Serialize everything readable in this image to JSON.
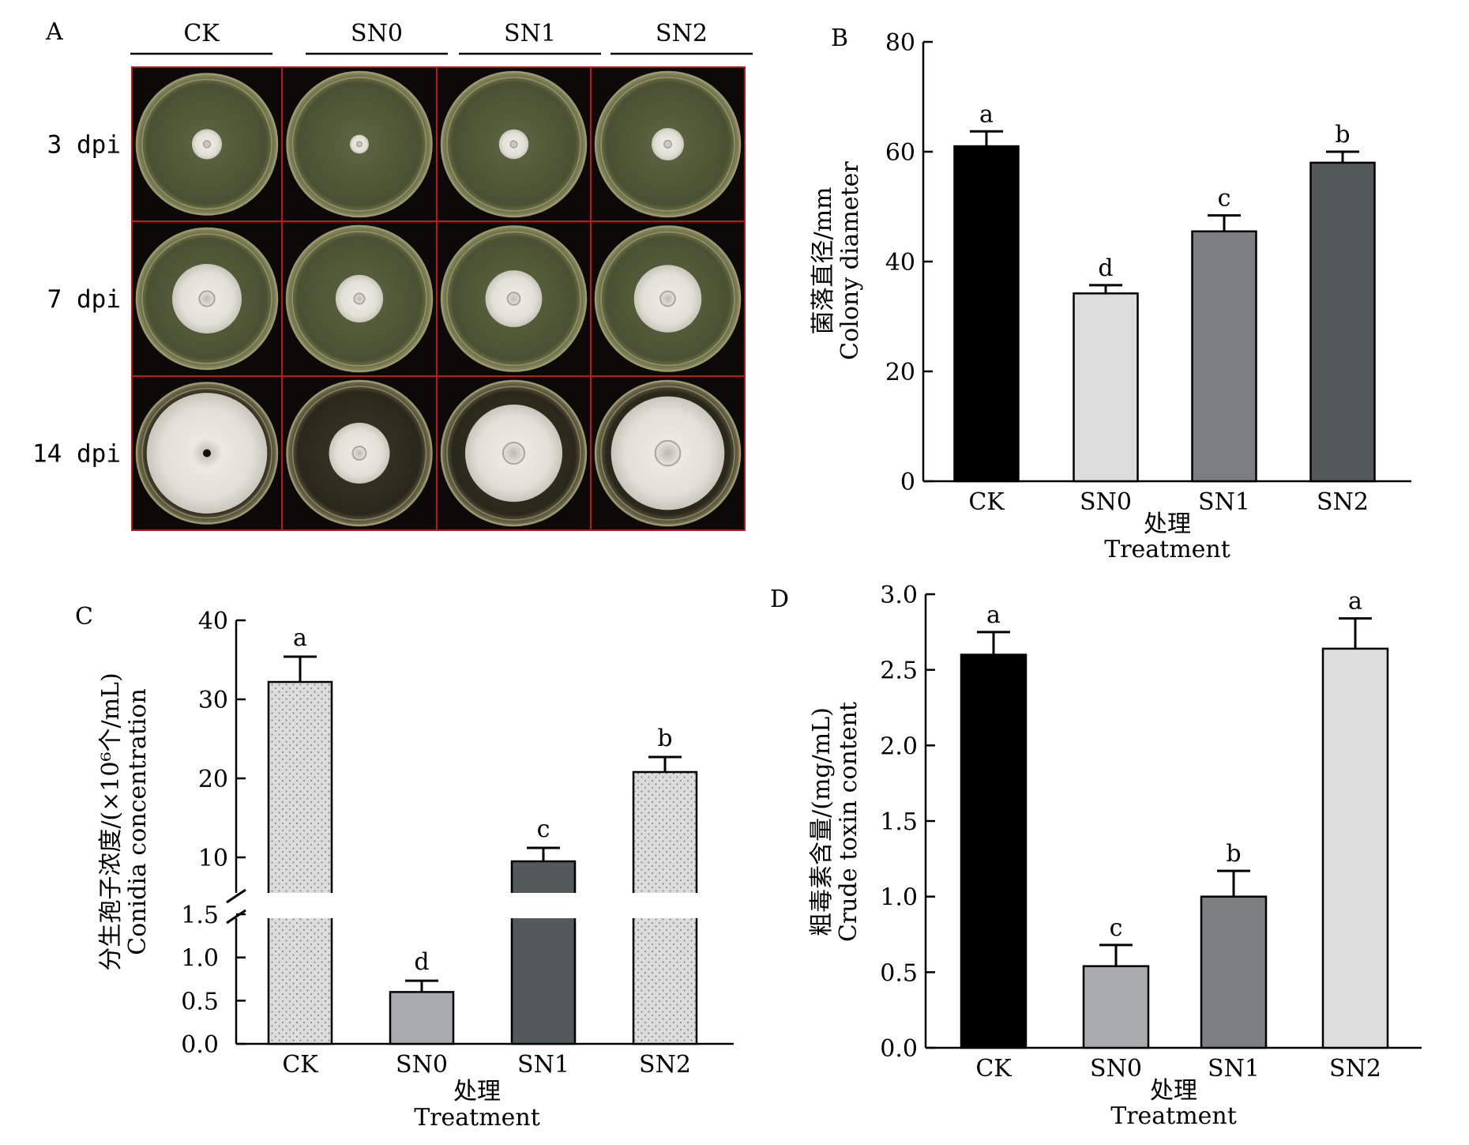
{
  "panel_a": {
    "label": "A",
    "columns": [
      "CK",
      "SN0",
      "SN1",
      "SN2"
    ],
    "rows": [
      "3 dpi",
      "7 dpi",
      "14 dpi"
    ],
    "colony_fraction": [
      [
        0.23,
        0.14,
        0.22,
        0.24
      ],
      [
        0.53,
        0.35,
        0.42,
        0.5
      ],
      [
        0.92,
        0.45,
        0.72,
        0.84
      ]
    ],
    "colors": {
      "frame": "#c01818",
      "plate_bg": "#0b0a08",
      "agar_early": "#4e5535",
      "agar_late": "#2c2a1e",
      "colony": "#e6e4dc"
    }
  },
  "chart_data": [
    {
      "panel": "B",
      "type": "bar",
      "categories": [
        "CK",
        "SN0",
        "SN1",
        "SN2"
      ],
      "values": [
        61,
        34.2,
        45.5,
        58
      ],
      "errors": [
        2.7,
        1.5,
        2.9,
        2.0
      ],
      "letters": [
        "a",
        "d",
        "c",
        "b"
      ],
      "colors": [
        "#000000",
        "#dcdcdc",
        "#7b7f82",
        "#53585b"
      ],
      "ylabel_cn": "菌落直径/mm",
      "ylabel_en": "Colony diameter",
      "xlabel_cn": "处理",
      "xlabel_en": "Treatment",
      "ylim": [
        0,
        80
      ],
      "yticks": [
        "0",
        "20",
        "40",
        "60",
        "80"
      ]
    },
    {
      "panel": "C",
      "type": "bar",
      "axis_break": true,
      "categories": [
        "CK",
        "SN0",
        "SN1",
        "SN2"
      ],
      "values": [
        32.2,
        0.6,
        9.5,
        20.8
      ],
      "errors": [
        3.2,
        0.13,
        1.7,
        1.9
      ],
      "letters": [
        "a",
        "d",
        "c",
        "b"
      ],
      "colors": [
        "#dcdcdc",
        "#a9abae",
        "#53585b",
        "#dcdcdc"
      ],
      "ylabel_cn": "分生孢子浓度/(×10⁶个/mL)",
      "ylabel_en": "Conidia concentration",
      "xlabel_cn": "处理",
      "xlabel_en": "Treatment",
      "yticks_lower": [
        "0.0",
        "0.5",
        "1.0",
        "1.5"
      ],
      "yticks_upper": [
        "10",
        "20",
        "30",
        "40"
      ],
      "ylim_lower": [
        0,
        1.5
      ],
      "ylim_upper": [
        10,
        40
      ]
    },
    {
      "panel": "D",
      "type": "bar",
      "categories": [
        "CK",
        "SN0",
        "SN1",
        "SN2"
      ],
      "values": [
        2.6,
        0.54,
        1.0,
        2.64
      ],
      "errors": [
        0.15,
        0.14,
        0.17,
        0.2
      ],
      "letters": [
        "a",
        "c",
        "b",
        "a"
      ],
      "colors": [
        "#000000",
        "#a9abae",
        "#7b7f82",
        "#dcdcdc"
      ],
      "ylabel_cn": "粗毒素含量/(mg/mL)",
      "ylabel_en": "Crude toxin content",
      "xlabel_cn": "处理",
      "xlabel_en": "Treatment",
      "ylim": [
        0,
        3.0
      ],
      "yticks": [
        "0.0",
        "0.5",
        "1.0",
        "1.5",
        "2.0",
        "2.5",
        "3.0"
      ]
    }
  ]
}
